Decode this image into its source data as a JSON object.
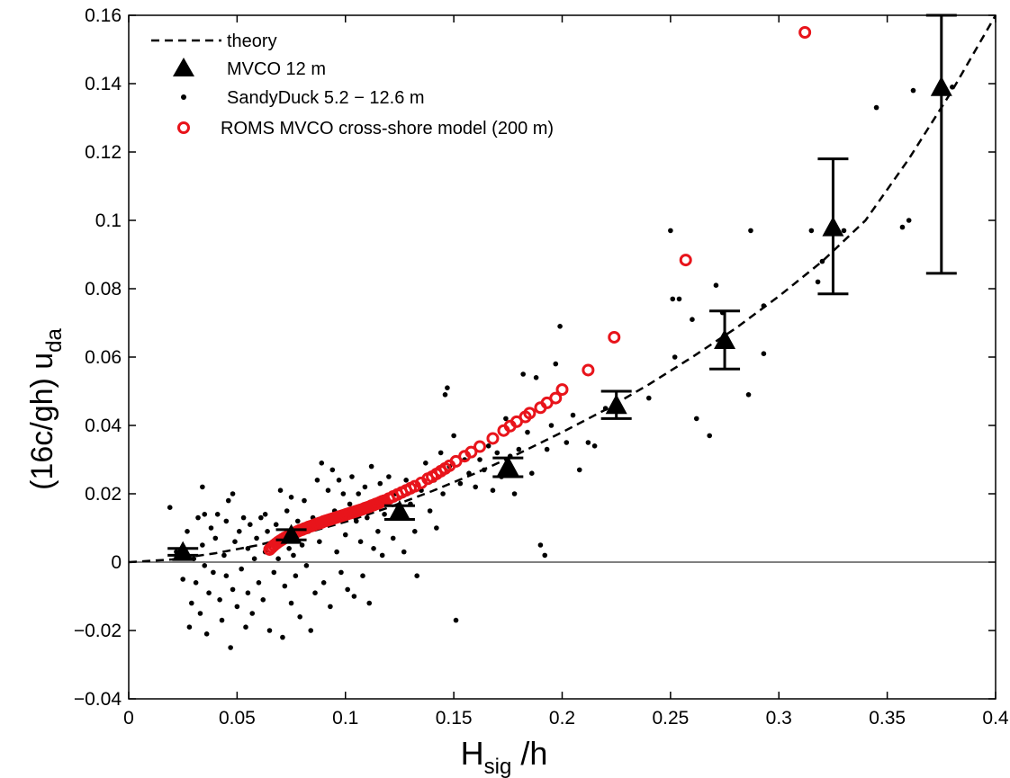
{
  "chart_data": {
    "type": "scatter",
    "xlabel_main": "H",
    "xlabel_sub": "sig",
    "xlabel_tail": " /h",
    "ylabel_main": "(16c/gh) u",
    "ylabel_sub": "da",
    "xlim": [
      0,
      0.4
    ],
    "ylim": [
      -0.04,
      0.16
    ],
    "x_ticks": [
      0,
      0.05,
      0.1,
      0.15,
      0.2,
      0.25,
      0.3,
      0.35,
      0.4
    ],
    "x_tick_labels": [
      "0",
      "0.05",
      "0.1",
      "0.15",
      "0.2",
      "0.25",
      "0.3",
      "0.35",
      "0.4"
    ],
    "y_ticks": [
      -0.04,
      -0.02,
      0,
      0.02,
      0.04,
      0.06,
      0.08,
      0.1,
      0.12,
      0.14,
      0.16
    ],
    "y_tick_labels": [
      "−0.04",
      "−0.02",
      "0",
      "0.02",
      "0.04",
      "0.06",
      "0.08",
      "0.1",
      "0.12",
      "0.14",
      "0.16"
    ],
    "grid": false,
    "legend_position": "top-left",
    "colors": {
      "theory": "#000000",
      "mvco": "#000000",
      "sandyduck": "#000000",
      "roms": "#e8141b"
    },
    "series": [
      {
        "name": "theory",
        "kind": "dashed-line",
        "x": [
          0,
          0.02,
          0.04,
          0.06,
          0.08,
          0.1,
          0.12,
          0.14,
          0.16,
          0.18,
          0.2,
          0.22,
          0.24,
          0.26,
          0.28,
          0.3,
          0.32,
          0.34,
          0.36,
          0.38,
          0.4
        ],
        "y": [
          0,
          0.0008,
          0.0026,
          0.005,
          0.0082,
          0.0118,
          0.016,
          0.0208,
          0.026,
          0.0318,
          0.038,
          0.0446,
          0.052,
          0.06,
          0.0684,
          0.0778,
          0.088,
          0.1,
          0.118,
          0.138,
          0.16
        ]
      },
      {
        "name": "MVCO 12 m",
        "kind": "triangle-errorbar",
        "x": [
          0.025,
          0.075,
          0.125,
          0.175,
          0.225,
          0.275,
          0.325,
          0.375
        ],
        "y": [
          0.003,
          0.008,
          0.015,
          0.028,
          0.046,
          0.065,
          0.098,
          0.139
        ],
        "err_low": [
          0.002,
          0.0065,
          0.0125,
          0.025,
          0.042,
          0.0565,
          0.0785,
          0.0845
        ],
        "err_high": [
          0.004,
          0.0095,
          0.0165,
          0.0305,
          0.05,
          0.0735,
          0.118,
          0.16
        ]
      },
      {
        "name": "SandyDuck 5.2 − 12.6 m",
        "kind": "dots",
        "points": [
          [
            0.019,
            0.016
          ],
          [
            0.022,
            0.003
          ],
          [
            0.025,
            -0.005
          ],
          [
            0.027,
            0.009
          ],
          [
            0.028,
            -0.019
          ],
          [
            0.029,
            -0.012
          ],
          [
            0.03,
            0.001
          ],
          [
            0.031,
            -0.006
          ],
          [
            0.032,
            0.013
          ],
          [
            0.033,
            -0.015
          ],
          [
            0.034,
            0.005
          ],
          [
            0.035,
            -0.001
          ],
          [
            0.035,
            0.014
          ],
          [
            0.036,
            -0.021
          ],
          [
            0.037,
            -0.009
          ],
          [
            0.038,
            0.01
          ],
          [
            0.039,
            -0.003
          ],
          [
            0.04,
            0.007
          ],
          [
            0.041,
            0.014
          ],
          [
            0.042,
            -0.011
          ],
          [
            0.043,
            -0.017
          ],
          [
            0.044,
            0.002
          ],
          [
            0.045,
            0.012
          ],
          [
            0.045,
            -0.004
          ],
          [
            0.046,
            0.018
          ],
          [
            0.047,
            -0.025
          ],
          [
            0.048,
            -0.008
          ],
          [
            0.048,
            0.02
          ],
          [
            0.049,
            0.006
          ],
          [
            0.05,
            -0.013
          ],
          [
            0.051,
            0.009
          ],
          [
            0.052,
            -0.002
          ],
          [
            0.053,
            0.013
          ],
          [
            0.054,
            -0.019
          ],
          [
            0.055,
            0.004
          ],
          [
            0.055,
            -0.009
          ],
          [
            0.056,
            0.011
          ],
          [
            0.057,
            -0.015
          ],
          [
            0.058,
            0.001
          ],
          [
            0.059,
            0.007
          ],
          [
            0.06,
            -0.006
          ],
          [
            0.061,
            0.013
          ],
          [
            0.062,
            -0.011
          ],
          [
            0.063,
            0.003
          ],
          [
            0.064,
            0.009
          ],
          [
            0.065,
            -0.02
          ],
          [
            0.066,
            0.005
          ],
          [
            0.067,
            -0.003
          ],
          [
            0.068,
            0.011
          ],
          [
            0.069,
            0.001
          ],
          [
            0.07,
            0.021
          ],
          [
            0.071,
            -0.022
          ],
          [
            0.072,
            -0.007
          ],
          [
            0.073,
            0.015
          ],
          [
            0.074,
            0.004
          ],
          [
            0.075,
            -0.012
          ],
          [
            0.075,
            0.019
          ],
          [
            0.076,
            0.002
          ],
          [
            0.077,
            -0.004
          ],
          [
            0.078,
            0.012
          ],
          [
            0.079,
            -0.016
          ],
          [
            0.08,
            0.005
          ],
          [
            0.081,
            0.018
          ],
          [
            0.082,
            -0.001
          ],
          [
            0.083,
            0.009
          ],
          [
            0.084,
            -0.02
          ],
          [
            0.085,
            0.013
          ],
          [
            0.086,
            -0.009
          ],
          [
            0.087,
            0.024
          ],
          [
            0.088,
            0.006
          ],
          [
            0.089,
            0.029
          ],
          [
            0.09,
            -0.006
          ],
          [
            0.091,
            0.011
          ],
          [
            0.092,
            0.021
          ],
          [
            0.093,
            -0.013
          ],
          [
            0.094,
            0.027
          ],
          [
            0.095,
            0.015
          ],
          [
            0.096,
            0.003
          ],
          [
            0.097,
            0.024
          ],
          [
            0.098,
            -0.003
          ],
          [
            0.099,
            0.02
          ],
          [
            0.1,
            0.008
          ],
          [
            0.101,
            -0.008
          ],
          [
            0.102,
            0.017
          ],
          [
            0.103,
            0.025
          ],
          [
            0.104,
            -0.01
          ],
          [
            0.105,
            0.012
          ],
          [
            0.106,
            0.02
          ],
          [
            0.107,
            0.006
          ],
          [
            0.108,
            -0.004
          ],
          [
            0.109,
            0.022
          ],
          [
            0.11,
            0.013
          ],
          [
            0.111,
            -0.012
          ],
          [
            0.112,
            0.028
          ],
          [
            0.113,
            0.004
          ],
          [
            0.114,
            0.017
          ],
          [
            0.115,
            0.009
          ],
          [
            0.116,
            0.023
          ],
          [
            0.117,
            0.002
          ],
          [
            0.118,
            0.014
          ],
          [
            0.12,
            0.025
          ],
          [
            0.122,
            0.007
          ],
          [
            0.123,
            0.02
          ],
          [
            0.125,
            0.013
          ],
          [
            0.127,
            0.003
          ],
          [
            0.128,
            0.024
          ],
          [
            0.13,
            0.017
          ],
          [
            0.132,
            0.009
          ],
          [
            0.133,
            -0.004
          ],
          [
            0.135,
            0.021
          ],
          [
            0.137,
            0.029
          ],
          [
            0.139,
            0.015
          ],
          [
            0.141,
            0.024
          ],
          [
            0.142,
            0.01
          ],
          [
            0.144,
            0.032
          ],
          [
            0.145,
            0.02
          ],
          [
            0.146,
            0.049
          ],
          [
            0.147,
            0.051
          ],
          [
            0.148,
            0.028
          ],
          [
            0.15,
            0.037
          ],
          [
            0.151,
            -0.017
          ],
          [
            0.153,
            0.023
          ],
          [
            0.155,
            0.03
          ],
          [
            0.157,
            0.026
          ],
          [
            0.16,
            0.022
          ],
          [
            0.162,
            0.03
          ],
          [
            0.164,
            0.027
          ],
          [
            0.166,
            0.034
          ],
          [
            0.168,
            0.021
          ],
          [
            0.17,
            0.032
          ],
          [
            0.172,
            0.025
          ],
          [
            0.174,
            0.042
          ],
          [
            0.176,
            0.031
          ],
          [
            0.178,
            0.02
          ],
          [
            0.18,
            0.033
          ],
          [
            0.182,
            0.055
          ],
          [
            0.184,
            0.038
          ],
          [
            0.186,
            0.026
          ],
          [
            0.188,
            0.054
          ],
          [
            0.19,
            0.005
          ],
          [
            0.192,
            0.002
          ],
          [
            0.193,
            0.033
          ],
          [
            0.195,
            0.04
          ],
          [
            0.197,
            0.058
          ],
          [
            0.199,
            0.069
          ],
          [
            0.202,
            0.035
          ],
          [
            0.205,
            0.043
          ],
          [
            0.208,
            0.027
          ],
          [
            0.212,
            0.035
          ],
          [
            0.215,
            0.034
          ],
          [
            0.22,
            0.045
          ],
          [
            0.24,
            0.048
          ],
          [
            0.25,
            0.097
          ],
          [
            0.251,
            0.077
          ],
          [
            0.252,
            0.06
          ],
          [
            0.254,
            0.077
          ],
          [
            0.26,
            0.071
          ],
          [
            0.262,
            0.042
          ],
          [
            0.268,
            0.037
          ],
          [
            0.271,
            0.081
          ],
          [
            0.274,
            0.073
          ],
          [
            0.286,
            0.049
          ],
          [
            0.287,
            0.097
          ],
          [
            0.293,
            0.061
          ],
          [
            0.293,
            0.075
          ],
          [
            0.318,
            0.082
          ],
          [
            0.32,
            0.088
          ],
          [
            0.315,
            0.097
          ],
          [
            0.33,
            0.097
          ],
          [
            0.345,
            0.133
          ],
          [
            0.357,
            0.098
          ],
          [
            0.36,
            0.1
          ],
          [
            0.362,
            0.138
          ],
          [
            0.38,
            0.139
          ],
          [
            0.034,
            0.022
          ],
          [
            0.063,
            0.014
          ]
        ]
      },
      {
        "name": "ROMS MVCO cross-shore model (200 m)",
        "kind": "open-circles",
        "x": [
          0.065,
          0.066,
          0.067,
          0.068,
          0.069,
          0.07,
          0.071,
          0.072,
          0.073,
          0.074,
          0.075,
          0.076,
          0.077,
          0.078,
          0.079,
          0.08,
          0.081,
          0.082,
          0.083,
          0.084,
          0.085,
          0.086,
          0.087,
          0.088,
          0.089,
          0.09,
          0.091,
          0.092,
          0.093,
          0.094,
          0.095,
          0.096,
          0.097,
          0.098,
          0.099,
          0.1,
          0.101,
          0.102,
          0.103,
          0.104,
          0.105,
          0.106,
          0.107,
          0.108,
          0.109,
          0.11,
          0.111,
          0.112,
          0.113,
          0.114,
          0.115,
          0.116,
          0.117,
          0.118,
          0.12,
          0.122,
          0.124,
          0.126,
          0.128,
          0.13,
          0.132,
          0.135,
          0.138,
          0.14,
          0.142,
          0.144,
          0.146,
          0.148,
          0.151,
          0.155,
          0.158,
          0.162,
          0.168,
          0.173,
          0.176,
          0.179,
          0.183,
          0.185,
          0.19,
          0.193,
          0.197,
          0.2,
          0.212,
          0.224,
          0.257,
          0.312
        ],
        "y": [
          0.0037,
          0.0043,
          0.0049,
          0.0054,
          0.0059,
          0.0063,
          0.0067,
          0.0071,
          0.0074,
          0.0078,
          0.0081,
          0.0084,
          0.0087,
          0.009,
          0.0093,
          0.0095,
          0.0098,
          0.01,
          0.0103,
          0.0105,
          0.0107,
          0.011,
          0.0112,
          0.0114,
          0.0116,
          0.0119,
          0.0121,
          0.0123,
          0.0125,
          0.0127,
          0.0129,
          0.0131,
          0.0133,
          0.0135,
          0.0137,
          0.0139,
          0.0141,
          0.0143,
          0.0145,
          0.0147,
          0.0149,
          0.0151,
          0.0153,
          0.0155,
          0.0158,
          0.016,
          0.0162,
          0.0165,
          0.0167,
          0.017,
          0.0172,
          0.0175,
          0.0178,
          0.018,
          0.0186,
          0.0192,
          0.0198,
          0.0204,
          0.021,
          0.0216,
          0.0222,
          0.0232,
          0.0244,
          0.025,
          0.0258,
          0.0266,
          0.0274,
          0.0282,
          0.0295,
          0.031,
          0.0322,
          0.0338,
          0.0362,
          0.0385,
          0.0398,
          0.0411,
          0.0425,
          0.0436,
          0.0452,
          0.0466,
          0.048,
          0.0505,
          0.0562,
          0.0658,
          0.0884,
          0.155
        ]
      }
    ]
  }
}
